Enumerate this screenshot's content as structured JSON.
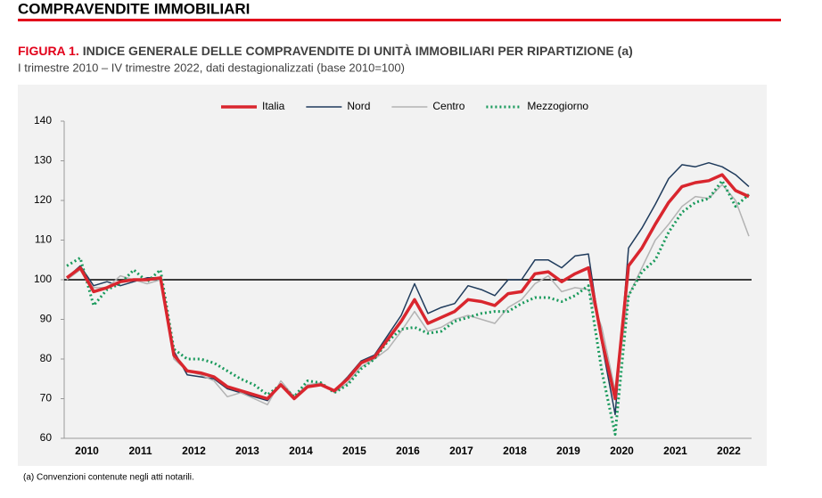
{
  "header": {
    "title": "COMPRAVENDITE IMMOBILIARI"
  },
  "figure": {
    "label": "FIGURA 1.",
    "title": "INDICE GENERALE DELLE COMPRAVENDITE DI UNITÀ IMMOBILIARI PER RIPARTIZIONE (a)",
    "subtitle": "I trimestre 2010 – IV trimestre 2022, dati destagionalizzati (base 2010=100)",
    "footnote": "(a) Convenzioni contenute negli atti notarili."
  },
  "chart_data": {
    "type": "line",
    "categories": [
      null,
      "2010",
      null,
      null,
      null,
      "2011",
      null,
      null,
      null,
      "2012",
      null,
      null,
      null,
      "2013",
      null,
      null,
      null,
      "2014",
      null,
      null,
      null,
      "2015",
      null,
      null,
      null,
      "2016",
      null,
      null,
      null,
      "2017",
      null,
      null,
      null,
      "2018",
      null,
      null,
      null,
      "2019",
      null,
      null,
      null,
      "2020",
      null,
      null,
      null,
      "2021",
      null,
      null,
      null,
      "2022",
      null,
      null
    ],
    "series": [
      {
        "name": "Italia",
        "color": "#d9262e",
        "width": 3.5,
        "dash": "solid",
        "values": [
          100.5,
          103,
          97,
          98,
          99.5,
          100,
          100,
          100.5,
          81,
          77,
          76.5,
          75.5,
          73,
          72,
          71,
          70,
          73.5,
          70,
          73,
          73.5,
          72,
          75,
          79,
          80.5,
          85,
          89.5,
          95,
          89,
          90.5,
          92,
          95,
          94.5,
          93.5,
          96.5,
          97,
          101.5,
          102,
          99.5,
          101.5,
          103,
          85,
          70,
          103.5,
          108,
          114,
          119.5,
          123.5,
          124.5,
          125,
          126.5,
          122.5,
          121
        ]
      },
      {
        "name": "Nord",
        "color": "#1f3b5c",
        "width": 1.5,
        "dash": "solid",
        "values": [
          100.5,
          103.5,
          98.5,
          99.5,
          98.5,
          99.5,
          100.5,
          100.5,
          82,
          76,
          75.5,
          75,
          72.5,
          71.5,
          70.5,
          69.5,
          73.5,
          70,
          73,
          73.5,
          72,
          75.5,
          79.5,
          81,
          86,
          91,
          99,
          91.5,
          93,
          94,
          98.5,
          97.5,
          96,
          100,
          100,
          105,
          105,
          103,
          106,
          106.5,
          84,
          66,
          108,
          113,
          119,
          125.5,
          129,
          128.5,
          129.5,
          128.5,
          126.5,
          123.5
        ]
      },
      {
        "name": "Centro",
        "color": "#b3b3b3",
        "width": 1.5,
        "dash": "solid",
        "values": [
          100,
          102.5,
          98,
          98,
          101,
          100,
          99,
          100,
          80,
          77,
          76,
          74.5,
          70.5,
          71.5,
          70,
          68.5,
          74.5,
          70.5,
          73.5,
          74,
          71.5,
          74,
          78,
          80,
          82.5,
          87,
          92,
          87,
          88,
          90,
          91,
          90,
          89,
          93,
          95,
          99,
          101,
          97,
          98,
          97.5,
          88,
          72,
          96,
          103,
          110,
          114,
          118.5,
          121,
          120.5,
          124,
          120,
          111
        ]
      },
      {
        "name": "Mezzogiorno",
        "color": "#1a9a5c",
        "width": 3,
        "dash": "dotted",
        "values": [
          103.5,
          105.5,
          93.5,
          97.5,
          99,
          102.5,
          99.5,
          102.5,
          82.5,
          80,
          80,
          79,
          77,
          75,
          73.5,
          71,
          73.5,
          70.5,
          74.5,
          74,
          71.5,
          73.5,
          77.5,
          80,
          84.5,
          87.5,
          88,
          86.5,
          87,
          89.5,
          90.5,
          91.5,
          92,
          92,
          94,
          95.5,
          95.5,
          94.5,
          96,
          98.5,
          77,
          61,
          96,
          102,
          105,
          112,
          117,
          119.5,
          120.5,
          125,
          118.5,
          121.5
        ]
      }
    ],
    "ylim": [
      60,
      140
    ],
    "yticks": [
      60,
      70,
      80,
      90,
      100,
      110,
      120,
      130,
      140
    ],
    "hline": 100,
    "grid": false,
    "legend": "top"
  }
}
